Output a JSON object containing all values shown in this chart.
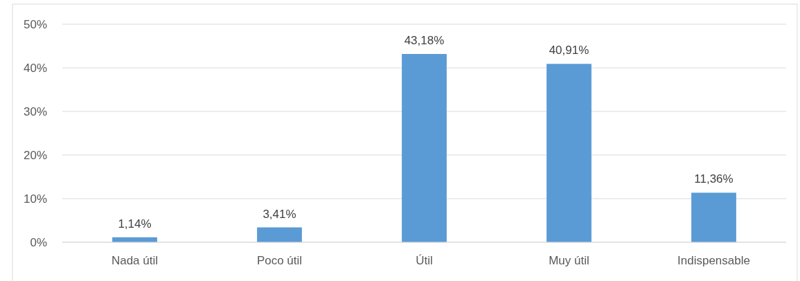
{
  "chart_data": {
    "type": "bar",
    "categories": [
      "Nada útil",
      "Poco útil",
      "Útil",
      "Muy útil",
      "Indispensable"
    ],
    "values": [
      1.14,
      3.41,
      43.18,
      40.91,
      11.36
    ],
    "value_labels": [
      "1,14%",
      "3,41%",
      "43,18%",
      "40,91%",
      "11,36%"
    ],
    "color": "#5b9bd5",
    "ylim": [
      0,
      50
    ],
    "yticks": [
      {
        "value": 0,
        "label": "0%"
      },
      {
        "value": 10,
        "label": "10%"
      },
      {
        "value": 20,
        "label": "20%"
      },
      {
        "value": 30,
        "label": "30%"
      },
      {
        "value": 40,
        "label": "40%"
      },
      {
        "value": 50,
        "label": "50%"
      }
    ],
    "grid": true
  }
}
